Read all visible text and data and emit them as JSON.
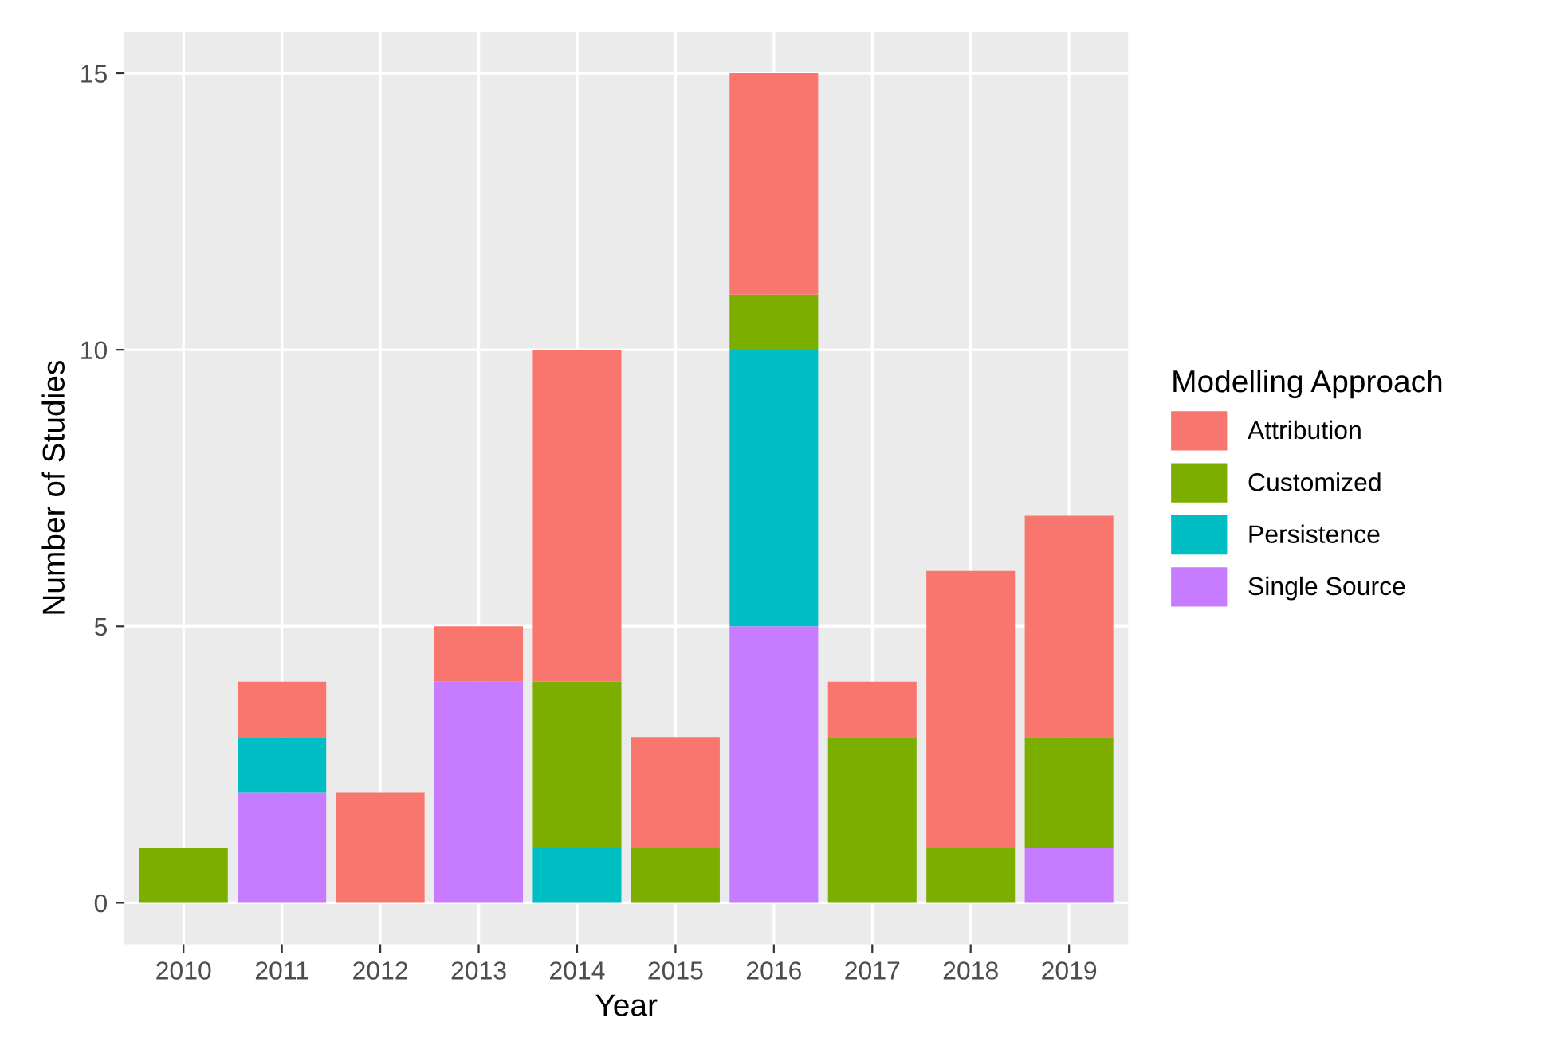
{
  "chart_data": {
    "type": "bar",
    "stacked": true,
    "xlabel": "Year",
    "ylabel": "Number of Studies",
    "legend_title": "Modelling Approach",
    "legend": "right",
    "grid": true,
    "categories": [
      "2010",
      "2011",
      "2012",
      "2013",
      "2014",
      "2015",
      "2016",
      "2017",
      "2018",
      "2019"
    ],
    "ylim": [
      -0.75,
      15.75
    ],
    "yticks": [
      0,
      5,
      10,
      15
    ],
    "series": [
      {
        "name": "Single Source",
        "color": "#c77cff",
        "values": [
          0,
          2,
          0,
          4,
          0,
          0,
          5,
          0,
          0,
          1
        ]
      },
      {
        "name": "Persistence",
        "color": "#00bfc4",
        "values": [
          0,
          1,
          0,
          0,
          1,
          0,
          5,
          0,
          0,
          0
        ]
      },
      {
        "name": "Customized",
        "color": "#7cae00",
        "values": [
          1,
          0,
          0,
          0,
          3,
          1,
          1,
          3,
          1,
          2
        ]
      },
      {
        "name": "Attribution",
        "color": "#f8766d",
        "values": [
          0,
          1,
          2,
          1,
          6,
          2,
          4,
          1,
          5,
          4
        ]
      }
    ]
  }
}
